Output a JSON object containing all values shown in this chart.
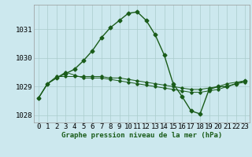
{
  "title": "Graphe pression niveau de la mer (hPa)",
  "background_color": "#cce8ee",
  "grid_color": "#aacccc",
  "line_color": "#1a5c1a",
  "hours": [
    0,
    1,
    2,
    3,
    4,
    5,
    6,
    7,
    8,
    9,
    10,
    11,
    12,
    13,
    14,
    15,
    16,
    17,
    18,
    19,
    20,
    21,
    22,
    23
  ],
  "series1": [
    1028.6,
    1029.1,
    1029.3,
    1029.5,
    1029.4,
    1029.3,
    1029.3,
    1029.3,
    1029.25,
    1029.2,
    1029.15,
    1029.1,
    1029.05,
    1029.0,
    1028.95,
    1028.9,
    1028.85,
    1028.8,
    1028.8,
    1028.85,
    1028.9,
    1029.0,
    1029.1,
    1029.15
  ],
  "series2": [
    1028.6,
    1029.1,
    1029.3,
    1029.45,
    1029.6,
    1029.9,
    1030.25,
    1030.7,
    1031.05,
    1031.3,
    1031.55,
    1031.6,
    1031.3,
    1030.8,
    1030.1,
    1029.1,
    1028.65,
    1028.15,
    1028.05,
    1028.9,
    1029.0,
    1029.0,
    1029.1,
    1029.2
  ],
  "series3": [
    1028.6,
    1029.1,
    1029.35,
    1029.35,
    1029.35,
    1029.35,
    1029.35,
    1029.35,
    1029.3,
    1029.3,
    1029.25,
    1029.2,
    1029.15,
    1029.1,
    1029.05,
    1029.0,
    1028.95,
    1028.9,
    1028.9,
    1028.95,
    1029.0,
    1029.1,
    1029.15,
    1029.2
  ],
  "ylim": [
    1027.75,
    1031.85
  ],
  "yticks": [
    1028,
    1029,
    1030,
    1031
  ],
  "tick_fontsize": 6.5,
  "title_fontsize": 6.5
}
